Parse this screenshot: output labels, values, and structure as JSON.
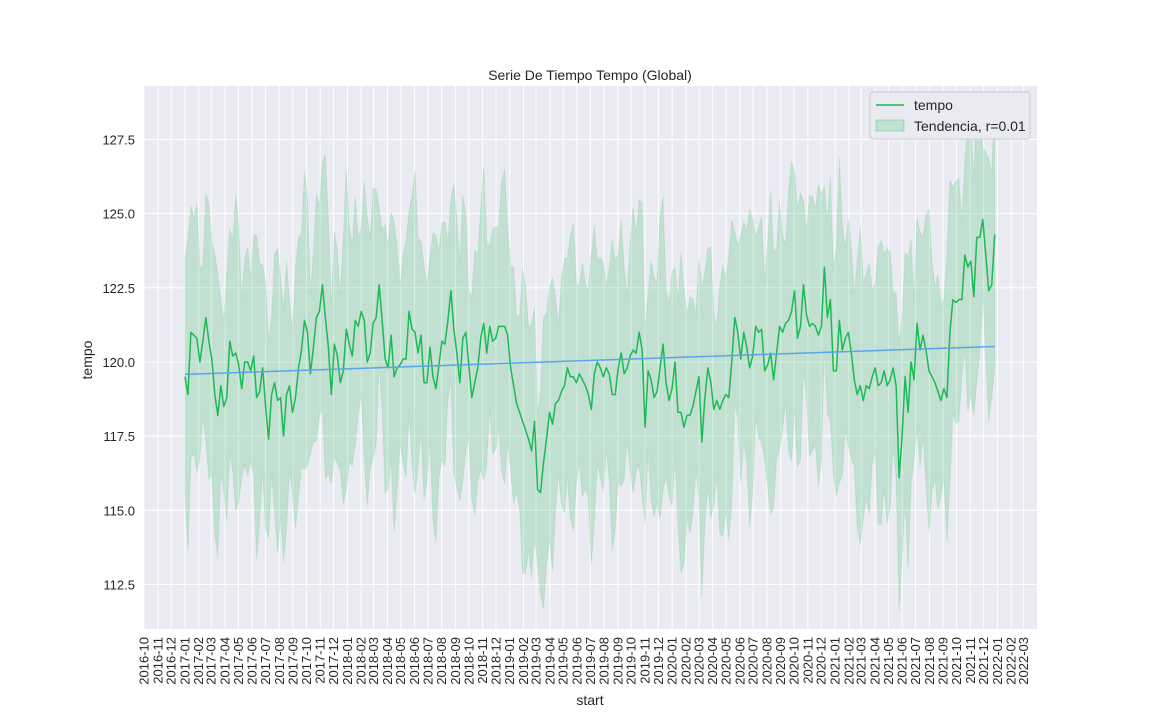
{
  "chart_data": {
    "type": "line",
    "title": "Serie De Tiempo Tempo (Global)",
    "xlabel": "start",
    "ylabel": "tempo",
    "ylim": [
      111,
      129.3
    ],
    "yticks": [
      112.5,
      115.0,
      117.5,
      120.0,
      122.5,
      125.0,
      127.5
    ],
    "ytick_labels": [
      "112.5",
      "115.0",
      "117.5",
      "120.0",
      "122.5",
      "125.0",
      "127.5"
    ],
    "xlim": [
      "2016-10-01",
      "2022-03-31"
    ],
    "xtick_labels": [
      "2016-10",
      "2016-11",
      "2016-12",
      "2017-01",
      "2017-02",
      "2017-03",
      "2017-04",
      "2017-05",
      "2017-06",
      "2017-07",
      "2017-08",
      "2017-09",
      "2017-10",
      "2017-11",
      "2017-12",
      "2018-01",
      "2018-02",
      "2018-03",
      "2018-04",
      "2018-05",
      "2018-06",
      "2018-07",
      "2018-08",
      "2018-09",
      "2018-10",
      "2018-11",
      "2018-12",
      "2019-01",
      "2019-02",
      "2019-03",
      "2019-04",
      "2019-05",
      "2019-06",
      "2019-07",
      "2019-08",
      "2019-09",
      "2019-10",
      "2019-11",
      "2019-12",
      "2020-01",
      "2020-02",
      "2020-03",
      "2020-04",
      "2020-05",
      "2020-06",
      "2020-07",
      "2020-08",
      "2020-09",
      "2020-10",
      "2020-11",
      "2020-12",
      "2021-01",
      "2021-02",
      "2021-03",
      "2021-04",
      "2021-05",
      "2021-06",
      "2021-07",
      "2021-08",
      "2021-09",
      "2021-10",
      "2021-11",
      "2021-12",
      "2022-01",
      "2022-02",
      "2022-03"
    ],
    "grid": true,
    "legend_position": "top-right",
    "series": [
      {
        "name": "tempo",
        "color": "#1db954",
        "band_color": "#1db954",
        "band_opacity": 0.18,
        "start_date": "2017-01-01",
        "end_date": "2021-12-26",
        "values": [
          119.5,
          118.9,
          121.0,
          120.9,
          120.8,
          120.0,
          120.7,
          121.5,
          120.7,
          120.1,
          118.9,
          118.2,
          119.2,
          118.5,
          118.8,
          120.7,
          120.2,
          120.3,
          119.9,
          119.1,
          120.0,
          120.0,
          119.7,
          120.2,
          118.8,
          119.0,
          119.8,
          118.5,
          117.4,
          118.9,
          119.3,
          118.7,
          118.8,
          117.5,
          118.9,
          119.2,
          118.3,
          118.8,
          119.8,
          120.4,
          121.4,
          121.0,
          119.6,
          120.5,
          121.5,
          121.7,
          122.6,
          121.5,
          120.5,
          118.9,
          120.6,
          120.2,
          119.3,
          119.7,
          121.1,
          120.6,
          120.2,
          121.4,
          121.2,
          121.7,
          121.4,
          120.0,
          120.3,
          121.3,
          121.5,
          122.6,
          121.4,
          120.1,
          119.8,
          120.9,
          119.5,
          119.8,
          119.9,
          120.1,
          120.1,
          121.7,
          121.1,
          121.0,
          120.3,
          120.9,
          119.3,
          119.3,
          120.5,
          119.5,
          119.1,
          119.9,
          120.7,
          120.6,
          121.4,
          122.4,
          121.1,
          120.3,
          119.3,
          120.8,
          121.0,
          119.9,
          118.8,
          119.3,
          119.8,
          120.8,
          121.3,
          120.3,
          121.2,
          120.7,
          120.8,
          121.2,
          121.2,
          121.2,
          120.9,
          119.8,
          119.2,
          118.6,
          118.3,
          118.0,
          117.7,
          117.4,
          117.0,
          118.0,
          115.7,
          115.6,
          116.6,
          117.4,
          118.3,
          117.9,
          118.6,
          118.7,
          119.0,
          119.2,
          119.8,
          119.5,
          119.5,
          119.3,
          119.6,
          119.4,
          119.2,
          118.9,
          118.4,
          119.6,
          120.0,
          119.8,
          119.5,
          119.8,
          119.6,
          118.9,
          118.9,
          119.8,
          120.3,
          119.6,
          119.8,
          120.2,
          120.4,
          120.3,
          121.0,
          120.4,
          117.8,
          119.7,
          119.4,
          118.8,
          119.0,
          119.8,
          120.6,
          119.3,
          118.7,
          119.1,
          120.0,
          118.3,
          118.3,
          117.8,
          118.2,
          118.2,
          118.5,
          119.0,
          119.5,
          117.3,
          118.8,
          119.8,
          119.3,
          118.4,
          118.7,
          118.4,
          118.7,
          118.9,
          118.8,
          120.0,
          121.5,
          121.0,
          120.1,
          121.0,
          120.5,
          119.8,
          120.2,
          121.2,
          121.0,
          121.1,
          119.7,
          119.9,
          120.3,
          119.4,
          120.3,
          121.2,
          121.0,
          121.3,
          121.4,
          121.7,
          122.4,
          120.8,
          121.2,
          122.6,
          121.6,
          121.2,
          121.3,
          121.2,
          120.9,
          121.2,
          123.2,
          121.5,
          122.1,
          119.7,
          119.7,
          121.4,
          120.4,
          120.8,
          121.0,
          120.3,
          119.4,
          118.9,
          119.2,
          118.7,
          119.2,
          119.1,
          119.5,
          119.8,
          119.2,
          119.3,
          119.7,
          119.2,
          119.4,
          119.8,
          119.2,
          116.1,
          117.5,
          119.5,
          118.3,
          120.0,
          119.4,
          121.3,
          120.4,
          120.9,
          120.4,
          119.7,
          119.5,
          119.3,
          119.0,
          118.7,
          119.1,
          118.8,
          121.0,
          122.1,
          122.0,
          122.1,
          122.1,
          123.6,
          123.2,
          123.4,
          122.2,
          124.2,
          124.2,
          124.8,
          123.6,
          122.4,
          122.6,
          124.3
        ]
      },
      {
        "name": "",
        "color": "#5aa5ea",
        "start_date": "2017-01-01",
        "end_date": "2021-12-26",
        "y_start": 119.58,
        "y_end": 120.52
      }
    ],
    "band": {
      "name": "Tendencia, r=0.01",
      "color": "#1db954",
      "opacity": 0.2,
      "half_width_min": 2.4,
      "half_width_max": 5.5
    },
    "colors": {
      "plot_background": "#eaeaf2",
      "grid": "#ffffff",
      "legend_background": "#eaeaf2"
    }
  }
}
